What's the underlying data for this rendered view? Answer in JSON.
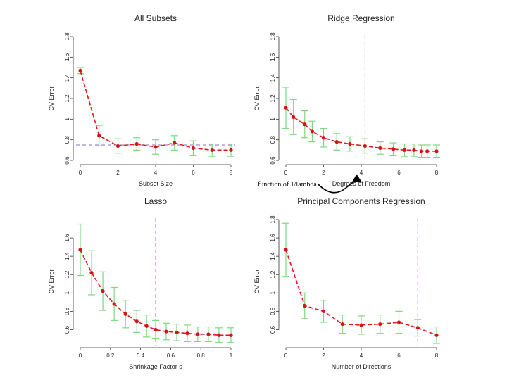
{
  "annotation": {
    "text": "function of 1/lambda"
  },
  "chart_data": [
    {
      "type": "line",
      "title": "All Subsets",
      "xlabel": "Subset Size",
      "ylabel": "CV Error",
      "xlim": [
        0,
        8
      ],
      "ylim": [
        0.6,
        1.8
      ],
      "xticks": [
        0,
        2,
        4,
        6,
        8
      ],
      "yticks": [
        0.6,
        0.8,
        1.0,
        1.2,
        1.4,
        1.6,
        1.8
      ],
      "x": [
        0,
        1,
        2,
        3,
        4,
        5,
        6,
        7,
        8
      ],
      "y": [
        1.47,
        0.84,
        0.74,
        0.76,
        0.73,
        0.77,
        0.72,
        0.7,
        0.7
      ],
      "err": [
        0.03,
        0.1,
        0.07,
        0.06,
        0.07,
        0.07,
        0.07,
        0.06,
        0.06
      ],
      "vline": 2,
      "hline": 0.75
    },
    {
      "type": "line",
      "title": "Ridge Regression",
      "xlabel": "Degrees of Freedom",
      "ylabel": "CV Error",
      "xlim": [
        0,
        8
      ],
      "ylim": [
        0.6,
        1.8
      ],
      "xticks": [
        0,
        2,
        4,
        6,
        8
      ],
      "yticks": [
        0.6,
        0.8,
        1.0,
        1.2,
        1.4,
        1.6,
        1.8
      ],
      "x": [
        0,
        0.4,
        1.0,
        1.4,
        2.0,
        2.7,
        3.4,
        4.2,
        5.0,
        5.7,
        6.3,
        6.8,
        7.2,
        7.5,
        8.0
      ],
      "y": [
        1.11,
        1.02,
        0.95,
        0.88,
        0.82,
        0.78,
        0.76,
        0.74,
        0.72,
        0.71,
        0.7,
        0.7,
        0.69,
        0.69,
        0.69
      ],
      "err": [
        0.2,
        0.17,
        0.13,
        0.1,
        0.09,
        0.08,
        0.07,
        0.07,
        0.06,
        0.06,
        0.06,
        0.06,
        0.06,
        0.06,
        0.06
      ],
      "vline": 4.2,
      "hline": 0.74
    },
    {
      "type": "line",
      "title": "Lasso",
      "xlabel": "Shrinkage Factor s",
      "ylabel": "CV Error",
      "xlim": [
        0,
        1
      ],
      "ylim": [
        0.45,
        1.8
      ],
      "xticks": [
        0.0,
        0.2,
        0.4,
        0.6,
        0.8,
        1.0
      ],
      "yticks": [
        0.6,
        0.8,
        1.0,
        1.2,
        1.4,
        1.6
      ],
      "x": [
        0.0,
        0.075,
        0.15,
        0.225,
        0.3,
        0.375,
        0.44,
        0.5,
        0.57,
        0.64,
        0.71,
        0.78,
        0.85,
        0.92,
        1.0
      ],
      "y": [
        1.47,
        1.22,
        1.02,
        0.88,
        0.77,
        0.69,
        0.64,
        0.6,
        0.58,
        0.57,
        0.56,
        0.55,
        0.55,
        0.54,
        0.54
      ],
      "err": [
        0.28,
        0.24,
        0.21,
        0.18,
        0.15,
        0.12,
        0.12,
        0.1,
        0.09,
        0.09,
        0.09,
        0.08,
        0.08,
        0.08,
        0.08
      ],
      "vline": 0.5,
      "hline": 0.63
    },
    {
      "type": "line",
      "title": "Principal Components Regression",
      "xlabel": "Number of Directions",
      "ylabel": "CV Error",
      "xlim": [
        0,
        8
      ],
      "ylim": [
        0.45,
        1.8
      ],
      "xticks": [
        0,
        2,
        4,
        6,
        8
      ],
      "yticks": [
        0.6,
        0.8,
        1.0,
        1.2,
        1.4,
        1.6,
        1.8
      ],
      "x": [
        0,
        1,
        2,
        3,
        4,
        5,
        6,
        7,
        8
      ],
      "y": [
        1.47,
        0.86,
        0.8,
        0.66,
        0.65,
        0.66,
        0.68,
        0.62,
        0.54
      ],
      "err": [
        0.29,
        0.14,
        0.12,
        0.1,
        0.1,
        0.1,
        0.12,
        0.09,
        0.09
      ],
      "vline": 7,
      "hline": 0.63
    }
  ]
}
